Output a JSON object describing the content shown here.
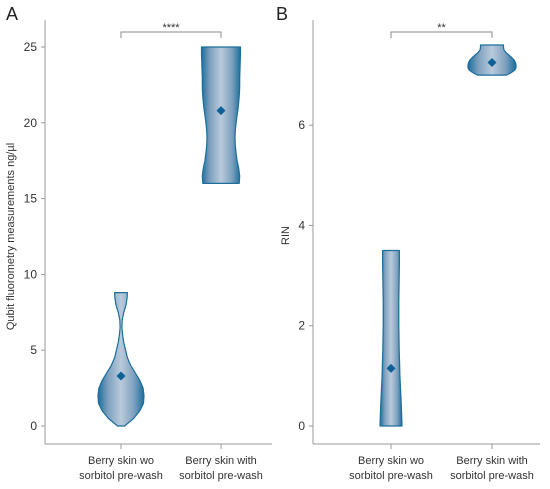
{
  "chart_data": [
    {
      "type": "violin",
      "panel": "A",
      "ylabel": "Qubit fluorometry measurements ng/µl",
      "ylim": [
        0,
        25
      ],
      "yticks": [
        0,
        5,
        10,
        15,
        20,
        25
      ],
      "categories": [
        {
          "line1": "Berry skin wo",
          "line2": "sorbitol pre-wash"
        },
        {
          "line1": "Berry skin with",
          "line2": "sorbitol pre-wash"
        }
      ],
      "violins": [
        {
          "min": 0,
          "max": 8.8,
          "mean": 3.3,
          "profile": [
            [
              0,
              0.15
            ],
            [
              0.5,
              0.55
            ],
            [
              1,
              0.82
            ],
            [
              1.5,
              0.98
            ],
            [
              2,
              1.0
            ],
            [
              2.5,
              0.96
            ],
            [
              3,
              0.82
            ],
            [
              3.5,
              0.62
            ],
            [
              4,
              0.42
            ],
            [
              4.5,
              0.28
            ],
            [
              5,
              0.2
            ],
            [
              5.5,
              0.12
            ],
            [
              6,
              0.07
            ],
            [
              6.5,
              0.04
            ],
            [
              7,
              0.05
            ],
            [
              7.5,
              0.12
            ],
            [
              8,
              0.22
            ],
            [
              8.5,
              0.27
            ],
            [
              8.8,
              0.28
            ]
          ]
        },
        {
          "min": 16,
          "max": 25,
          "mean": 20.8,
          "profile": [
            [
              16,
              0.7
            ],
            [
              16.5,
              0.72
            ],
            [
              17,
              0.68
            ],
            [
              17.5,
              0.62
            ],
            [
              18,
              0.58
            ],
            [
              18.5,
              0.55
            ],
            [
              19,
              0.54
            ],
            [
              19.5,
              0.55
            ],
            [
              20,
              0.58
            ],
            [
              20.5,
              0.62
            ],
            [
              21,
              0.66
            ],
            [
              21.5,
              0.69
            ],
            [
              22,
              0.71
            ],
            [
              22.5,
              0.72
            ],
            [
              23,
              0.72
            ],
            [
              23.5,
              0.73
            ],
            [
              24,
              0.74
            ],
            [
              24.5,
              0.75
            ],
            [
              25,
              0.75
            ]
          ]
        }
      ],
      "significance": "****"
    },
    {
      "type": "violin",
      "panel": "B",
      "ylabel": "RIN",
      "ylim": [
        0,
        7.6
      ],
      "yticks": [
        0,
        2,
        4,
        6
      ],
      "categories": [
        {
          "line1": "Berry skin wo",
          "line2": "sorbitol pre-wash"
        },
        {
          "line1": "Berry skin with",
          "line2": "sorbitol pre-wash"
        }
      ],
      "violins": [
        {
          "min": 0,
          "max": 3.5,
          "mean": 1.15,
          "profile": [
            [
              0,
              0.58
            ],
            [
              0.25,
              0.56
            ],
            [
              0.5,
              0.53
            ],
            [
              0.75,
              0.5
            ],
            [
              1,
              0.47
            ],
            [
              1.25,
              0.45
            ],
            [
              1.5,
              0.43
            ],
            [
              1.75,
              0.42
            ],
            [
              2,
              0.41
            ],
            [
              2.25,
              0.41
            ],
            [
              2.5,
              0.41
            ],
            [
              2.75,
              0.42
            ],
            [
              3,
              0.43
            ],
            [
              3.25,
              0.44
            ],
            [
              3.5,
              0.44
            ]
          ]
        },
        {
          "min": 7.0,
          "max": 7.6,
          "mean": 7.25,
          "profile": [
            [
              7.0,
              0.6
            ],
            [
              7.05,
              0.8
            ],
            [
              7.1,
              0.95
            ],
            [
              7.15,
              1.0
            ],
            [
              7.2,
              1.0
            ],
            [
              7.25,
              0.98
            ],
            [
              7.3,
              0.92
            ],
            [
              7.35,
              0.82
            ],
            [
              7.4,
              0.7
            ],
            [
              7.45,
              0.58
            ],
            [
              7.5,
              0.5
            ],
            [
              7.55,
              0.48
            ],
            [
              7.6,
              0.48
            ]
          ]
        }
      ],
      "significance": "**"
    }
  ],
  "colors": {
    "violin_edge": "#1c6e9c",
    "violin_fill_center": "#b9cadb",
    "mean_marker": "#0e5f95",
    "axis": "#999999",
    "text": "#333333"
  }
}
